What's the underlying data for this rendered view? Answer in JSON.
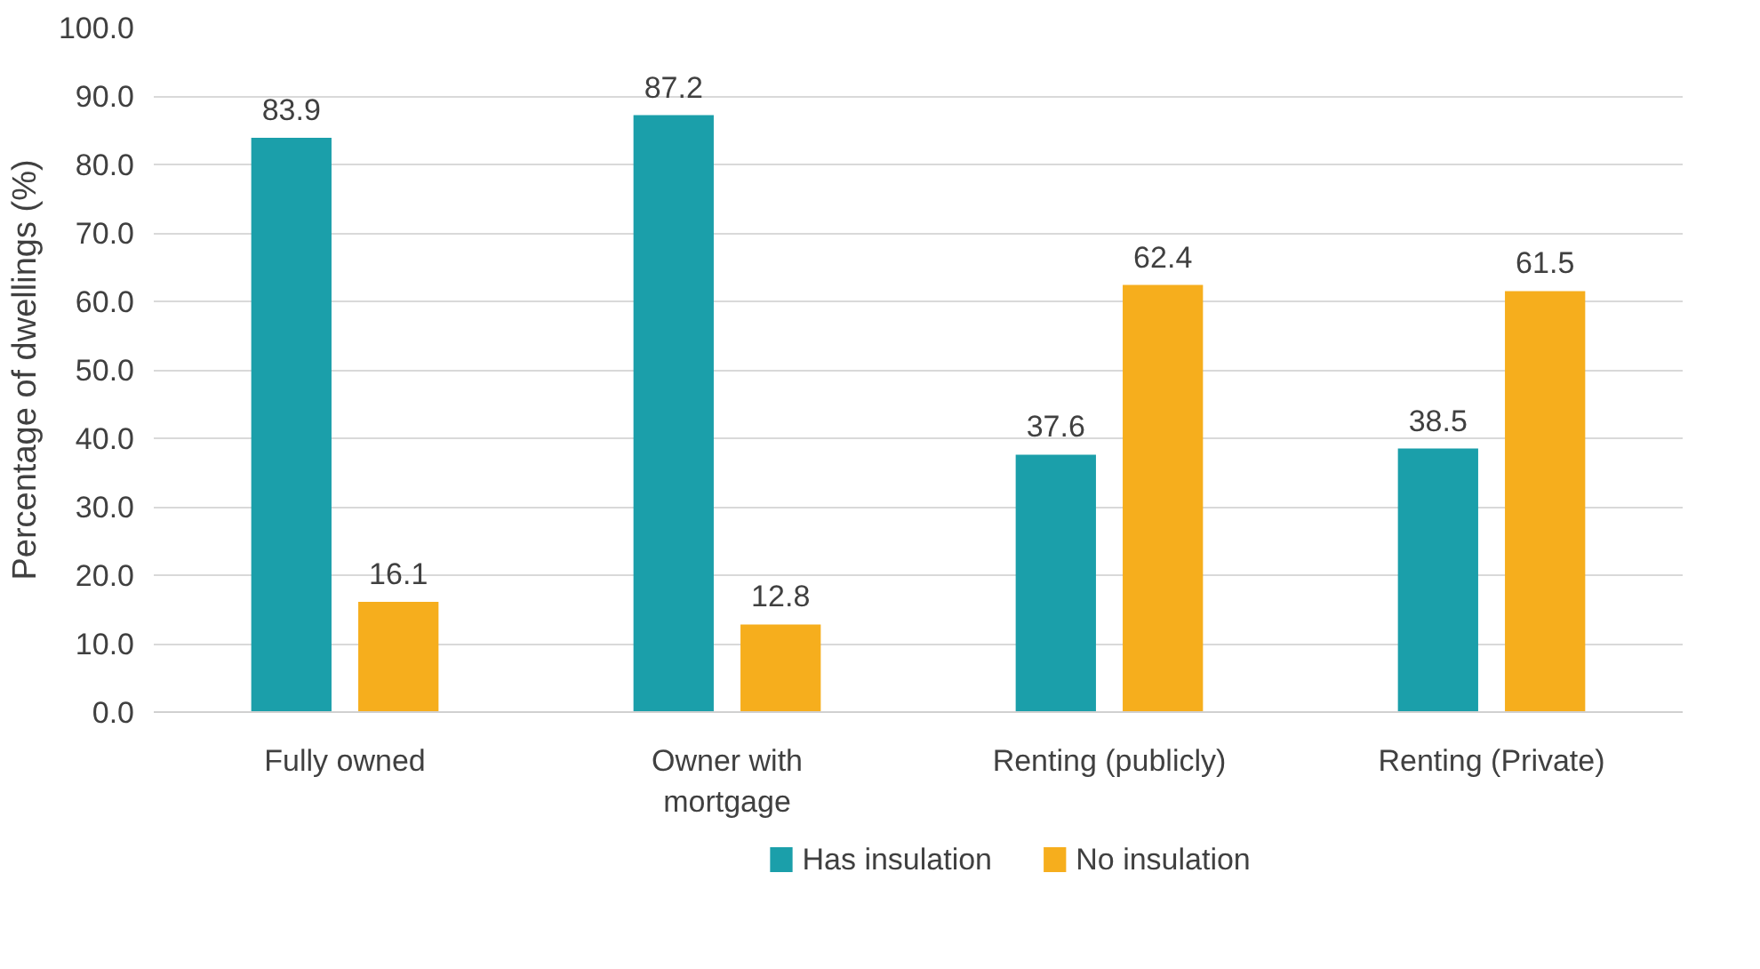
{
  "chart_data": {
    "type": "bar",
    "ylabel": "Percentage of dwellings (%)",
    "categories": [
      "Fully owned",
      "Owner with\nmortgage",
      "Renting (publicly)",
      "Renting (Private)"
    ],
    "series": [
      {
        "name": "Has insulation",
        "color": "#1b9faa",
        "values": [
          83.9,
          87.2,
          37.6,
          38.5
        ]
      },
      {
        "name": "No insulation",
        "color": "#f6ae1d",
        "values": [
          16.1,
          12.8,
          62.4,
          61.5
        ]
      }
    ],
    "ylim": [
      0,
      100
    ],
    "yticks": [
      {
        "value": 0,
        "label": "0.0"
      },
      {
        "value": 10,
        "label": "10.0"
      },
      {
        "value": 20,
        "label": "20.0"
      },
      {
        "value": 30,
        "label": "30.0"
      },
      {
        "value": 40,
        "label": "40.0"
      },
      {
        "value": 50,
        "label": "50.0"
      },
      {
        "value": 60,
        "label": "60.0"
      },
      {
        "value": 70,
        "label": "70.0"
      },
      {
        "value": 80,
        "label": "80.0"
      },
      {
        "value": 90,
        "label": "90.0"
      },
      {
        "value": 100,
        "label": "100.0"
      }
    ],
    "grid": "y",
    "legend": "bottom",
    "data_labels": true
  }
}
